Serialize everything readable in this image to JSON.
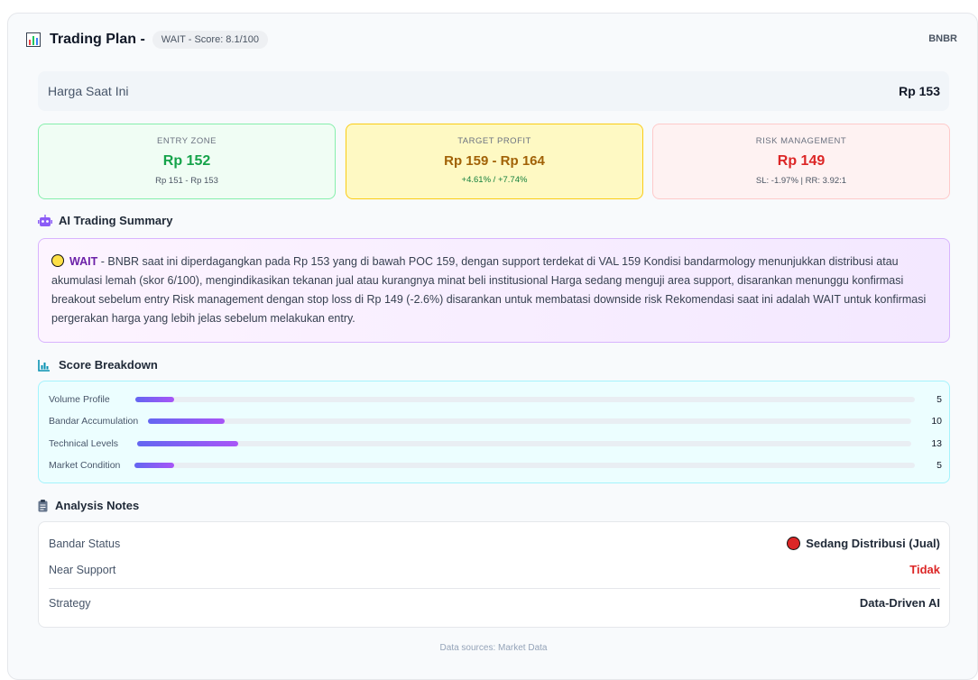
{
  "header": {
    "title": "Trading Plan -",
    "badge": "WAIT - Score: 8.1/100",
    "ticker": "BNBR",
    "icon": "bar-chart-icon"
  },
  "price": {
    "label": "Harga Saat Ini",
    "value": "Rp 153"
  },
  "cards": {
    "entry": {
      "label": "ENTRY ZONE",
      "value": "Rp 152",
      "sub": "Rp 151 - Rp 153",
      "color": "#16a34a"
    },
    "target": {
      "label": "TARGET PROFIT",
      "value": "Rp 159 - Rp 164",
      "sub": "+4.61% / +7.74%",
      "color": "#a16207"
    },
    "risk": {
      "label": "RISK MANAGEMENT",
      "value": "Rp 149",
      "sub": "SL: -1.97% | RR: 3.92:1",
      "color": "#dc2626"
    }
  },
  "summary": {
    "title": "AI Trading Summary",
    "icon": "robot-icon",
    "status_icon": "yellow-circle-icon",
    "status": "WAIT",
    "text": " - BNBR saat ini diperdagangkan pada Rp 153 yang di bawah POC 159, dengan support terdekat di VAL 159 Kondisi bandarmology menunjukkan distribusi atau akumulasi lemah (skor 6/100), mengindikasikan tekanan jual atau kurangnya minat beli institusional Harga sedang menguji area support, disarankan menunggu konfirmasi breakout sebelum entry Risk management dengan stop loss di Rp 149 (-2.6%) disarankan untuk membatasi downside risk Rekomendasi saat ini adalah WAIT untuk konfirmasi pergerakan harga yang lebih jelas sebelum melakukan entry."
  },
  "breakdown": {
    "title": "Score Breakdown",
    "icon": "bar-chart-icon",
    "max": 100,
    "items": [
      {
        "label": "Volume Profile",
        "value": 5
      },
      {
        "label": "Bandar Accumulation",
        "value": 10
      },
      {
        "label": "Technical Levels",
        "value": 13
      },
      {
        "label": "Market Condition",
        "value": 5
      }
    ]
  },
  "notes": {
    "title": "Analysis Notes",
    "icon": "clipboard-icon",
    "bandar_label": "Bandar Status",
    "bandar_value": "Sedang Distribusi (Jual)",
    "bandar_icon": "red-circle-icon",
    "support_label": "Near Support",
    "support_value": "Tidak",
    "strategy_label": "Strategy",
    "strategy_value": "Data-Driven AI"
  },
  "footer": "Data sources: Market Data"
}
